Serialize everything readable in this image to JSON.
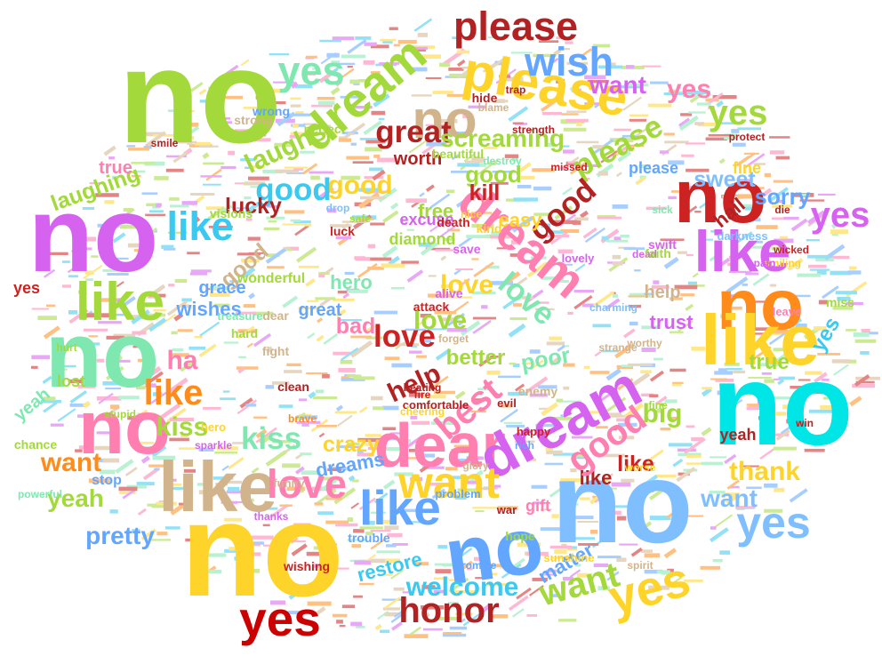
{
  "cloud": {
    "words": [
      {
        "text": "no",
        "color": "#a3d93b"
      },
      {
        "text": "no",
        "color": "#d662f0"
      },
      {
        "text": "no",
        "color": "#7fe8b0"
      },
      {
        "text": "no",
        "color": "#ff7fb0"
      },
      {
        "text": "no",
        "color": "#ffd42a"
      },
      {
        "text": "no",
        "color": "#00e6e6"
      },
      {
        "text": "no",
        "color": "#7fbfff"
      },
      {
        "text": "no",
        "color": "#62a6ff"
      },
      {
        "text": "no",
        "color": "#cc2222"
      },
      {
        "text": "no",
        "color": "#ff8c1a"
      },
      {
        "text": "no",
        "color": "#d2b48c"
      },
      {
        "text": "like",
        "color": "#d2b48c"
      },
      {
        "text": "like",
        "color": "#ffd42a"
      },
      {
        "text": "like",
        "color": "#d662f0"
      },
      {
        "text": "like",
        "color": "#a3d93b"
      },
      {
        "text": "like",
        "color": "#3ac9f0"
      },
      {
        "text": "like",
        "color": "#ff8c1a"
      },
      {
        "text": "like",
        "color": "#62a6ff"
      },
      {
        "text": "like",
        "color": "#b22222"
      },
      {
        "text": "like",
        "color": "#cc2222"
      },
      {
        "text": "dear",
        "color": "#ff7fb0"
      },
      {
        "text": "dream",
        "color": "#d662f0"
      },
      {
        "text": "dream",
        "color": "#ff7fb0"
      },
      {
        "text": "dream",
        "color": "#a3d93b"
      },
      {
        "text": "please",
        "color": "#ffd42a"
      },
      {
        "text": "please",
        "color": "#a3d93b"
      },
      {
        "text": "please",
        "color": "#62a6ff"
      },
      {
        "text": "please",
        "color": "#b22222"
      },
      {
        "text": "yes",
        "color": "#cc0000"
      },
      {
        "text": "yes",
        "color": "#ffd42a"
      },
      {
        "text": "yes",
        "color": "#7fbfff"
      },
      {
        "text": "yes",
        "color": "#a3d93b"
      },
      {
        "text": "yes",
        "color": "#ff7fb0"
      },
      {
        "text": "yes",
        "color": "#d662f0"
      },
      {
        "text": "yes",
        "color": "#3ac9f0"
      },
      {
        "text": "yes",
        "color": "#cc2222"
      },
      {
        "text": "yes",
        "color": "#7fe8b0"
      },
      {
        "text": "wish",
        "color": "#62a6ff"
      },
      {
        "text": "want",
        "color": "#d662f0"
      },
      {
        "text": "want",
        "color": "#ff8c1a"
      },
      {
        "text": "want",
        "color": "#a3d93b"
      },
      {
        "text": "want",
        "color": "#7fbfff"
      },
      {
        "text": "want",
        "color": "#ffd42a"
      },
      {
        "text": "good",
        "color": "#ffd42a"
      },
      {
        "text": "good",
        "color": "#ff7fb0"
      },
      {
        "text": "good",
        "color": "#d2b48c"
      },
      {
        "text": "good",
        "color": "#a3d93b"
      },
      {
        "text": "good",
        "color": "#b22222"
      },
      {
        "text": "good",
        "color": "#3ac9f0"
      },
      {
        "text": "great",
        "color": "#b22222"
      },
      {
        "text": "love",
        "color": "#cc2222"
      },
      {
        "text": "love",
        "color": "#a3d93b"
      },
      {
        "text": "love",
        "color": "#ffd42a"
      },
      {
        "text": "love",
        "color": "#7fe8b0"
      },
      {
        "text": "love",
        "color": "#ff7fb0"
      },
      {
        "text": "kiss",
        "color": "#a3d93b"
      },
      {
        "text": "kiss",
        "color": "#7fe8b0"
      },
      {
        "text": "ha",
        "color": "#ff7fb0"
      },
      {
        "text": "help",
        "color": "#d2b48c"
      },
      {
        "text": "help",
        "color": "#b22222"
      },
      {
        "text": "best",
        "color": "#ff7fb0"
      },
      {
        "text": "big",
        "color": "#a3d93b"
      },
      {
        "text": "honor",
        "color": "#b22222"
      },
      {
        "text": "welcome",
        "color": "#3ac9f0"
      },
      {
        "text": "thank",
        "color": "#ffd42a"
      },
      {
        "text": "screaming",
        "color": "#a3d93b"
      },
      {
        "text": "laughs",
        "color": "#a3d93b"
      },
      {
        "text": "laughing",
        "color": "#a3d93b"
      },
      {
        "text": "sweet",
        "color": "#7fbfff"
      },
      {
        "text": "sorry",
        "color": "#62a6ff"
      },
      {
        "text": "true",
        "color": "#a3d93b"
      },
      {
        "text": "true",
        "color": "#ff7fb0"
      },
      {
        "text": "worth",
        "color": "#b22222"
      },
      {
        "text": "kill",
        "color": "#cc2222"
      },
      {
        "text": "free",
        "color": "#a3d93b"
      },
      {
        "text": "fine",
        "color": "#ffd42a"
      },
      {
        "text": "wishes",
        "color": "#62a6ff"
      },
      {
        "text": "grace",
        "color": "#62a6ff"
      },
      {
        "text": "hero",
        "color": "#7fe8b0"
      },
      {
        "text": "bad",
        "color": "#ff7fb0"
      },
      {
        "text": "better",
        "color": "#a3d93b"
      },
      {
        "text": "poor",
        "color": "#7fe8b0"
      },
      {
        "text": "crazy",
        "color": "#ffd42a"
      },
      {
        "text": "dreams",
        "color": "#62a6ff"
      },
      {
        "text": "gift",
        "color": "#ff7fb0"
      },
      {
        "text": "matter",
        "color": "#62a6ff"
      },
      {
        "text": "restore",
        "color": "#3ac9f0"
      },
      {
        "text": "pretty",
        "color": "#62a6ff"
      },
      {
        "text": "yeah",
        "color": "#a3d93b"
      },
      {
        "text": "yeah",
        "color": "#7fe8b0"
      },
      {
        "text": "yeah",
        "color": "#b22222"
      },
      {
        "text": "lost",
        "color": "#a3d93b"
      },
      {
        "text": "stop",
        "color": "#62a6ff"
      },
      {
        "text": "trust",
        "color": "#d662f0"
      },
      {
        "text": "hail",
        "color": "#b22222"
      },
      {
        "text": "miss",
        "color": "#a3d93b"
      },
      {
        "text": "wishing",
        "color": "#cc2222"
      },
      {
        "text": "war",
        "color": "#b22222"
      },
      {
        "text": "lucky",
        "color": "#b22222"
      },
      {
        "text": "great",
        "color": "#62a6ff"
      },
      {
        "text": "dear",
        "color": "#d2b48c"
      },
      {
        "text": "fight",
        "color": "#d2b48c"
      },
      {
        "text": "die",
        "color": "#b22222"
      },
      {
        "text": "strength",
        "color": "#b22222"
      },
      {
        "text": "protect",
        "color": "#b22222"
      },
      {
        "text": "wonderful",
        "color": "#a3d93b"
      },
      {
        "text": "easy",
        "color": "#ffd42a"
      },
      {
        "text": "diamond",
        "color": "#a3d93b"
      },
      {
        "text": "excuse",
        "color": "#d662f0"
      },
      {
        "text": "darkness",
        "color": "#7fbfff"
      },
      {
        "text": "problem",
        "color": "#62a6ff"
      },
      {
        "text": "happy",
        "color": "#cc2222"
      },
      {
        "text": "comfortable",
        "color": "#b22222"
      },
      {
        "text": "charming",
        "color": "#7fbfff"
      },
      {
        "text": "enemy",
        "color": "#d2b48c"
      },
      {
        "text": "death",
        "color": "#cc2222"
      },
      {
        "text": "dead",
        "color": "#d662f0"
      },
      {
        "text": "hope",
        "color": "#a3d93b"
      },
      {
        "text": "promise",
        "color": "#62a6ff"
      },
      {
        "text": "sunshine",
        "color": "#ffd42a"
      },
      {
        "text": "trouble",
        "color": "#62a6ff"
      },
      {
        "text": "strong",
        "color": "#d2b48c"
      },
      {
        "text": "wrong",
        "color": "#62a6ff"
      },
      {
        "text": "smile",
        "color": "#b22222"
      },
      {
        "text": "visions",
        "color": "#a3d93b"
      },
      {
        "text": "treasure",
        "color": "#7fe8b0"
      },
      {
        "text": "hard",
        "color": "#a3d93b"
      },
      {
        "text": "fire",
        "color": "#cc2222"
      },
      {
        "text": "evil",
        "color": "#b22222"
      },
      {
        "text": "cheering",
        "color": "#ffd42a"
      },
      {
        "text": "beating",
        "color": "#b22222"
      },
      {
        "text": "attack",
        "color": "#cc2222"
      },
      {
        "text": "alive",
        "color": "#d662f0"
      },
      {
        "text": "perfect",
        "color": "#a3d93b"
      },
      {
        "text": "beautiful",
        "color": "#a3d93b"
      },
      {
        "text": "save",
        "color": "#d662f0"
      },
      {
        "text": "kind",
        "color": "#ffd42a"
      },
      {
        "text": "nice",
        "color": "#ffd42a"
      },
      {
        "text": "faith",
        "color": "#a3d93b"
      },
      {
        "text": "clean",
        "color": "#b22222"
      },
      {
        "text": "chance",
        "color": "#a3d93b"
      },
      {
        "text": "luck",
        "color": "#cc2222"
      },
      {
        "text": "glory",
        "color": "#d2b48c"
      },
      {
        "text": "safe",
        "color": "#a3d93b"
      },
      {
        "text": "missed",
        "color": "#cc2222"
      },
      {
        "text": "sparkle",
        "color": "#d662f0"
      },
      {
        "text": "funny",
        "color": "#d2b48c"
      },
      {
        "text": "hurt",
        "color": "#a3d93b"
      },
      {
        "text": "powerful",
        "color": "#7fe8b0"
      },
      {
        "text": "stupid",
        "color": "#a3d93b"
      },
      {
        "text": "smiling",
        "color": "#ffd42a"
      },
      {
        "text": "worthy",
        "color": "#d2b48c"
      },
      {
        "text": "swift",
        "color": "#d662f0"
      },
      {
        "text": "strange",
        "color": "#d2b48c"
      },
      {
        "text": "trap",
        "color": "#b22222"
      },
      {
        "text": "hide",
        "color": "#b22222"
      },
      {
        "text": "brave",
        "color": "#ff8c1a"
      },
      {
        "text": "drop",
        "color": "#7fbfff"
      },
      {
        "text": "worse",
        "color": "#ffd42a"
      },
      {
        "text": "win",
        "color": "#b22222"
      },
      {
        "text": "leave",
        "color": "#ff7fb0"
      },
      {
        "text": "forget",
        "color": "#d2b48c"
      },
      {
        "text": "rich",
        "color": "#62a6ff"
      },
      {
        "text": "sick",
        "color": "#7fe8b0"
      },
      {
        "text": "wicked",
        "color": "#cc2222"
      },
      {
        "text": "blame",
        "color": "#d2b48c"
      },
      {
        "text": "destroy",
        "color": "#7fe8b0"
      },
      {
        "text": "lovely",
        "color": "#d662f0"
      },
      {
        "text": "thanks",
        "color": "#d662f0"
      },
      {
        "text": "spirit",
        "color": "#d2b48c"
      },
      {
        "text": "hero",
        "color": "#ffd42a"
      },
      {
        "text": "fine",
        "color": "#a3d93b"
      },
      {
        "text": "pain",
        "color": "#d662f0"
      },
      {
        "text": "share",
        "color": "#d2b48c"
      },
      {
        "text": "trust",
        "color": "#62a6ff"
      },
      {
        "text": "thank",
        "color": "#d662f0"
      },
      {
        "text": "sweet",
        "color": "#ffd42a"
      }
    ]
  }
}
